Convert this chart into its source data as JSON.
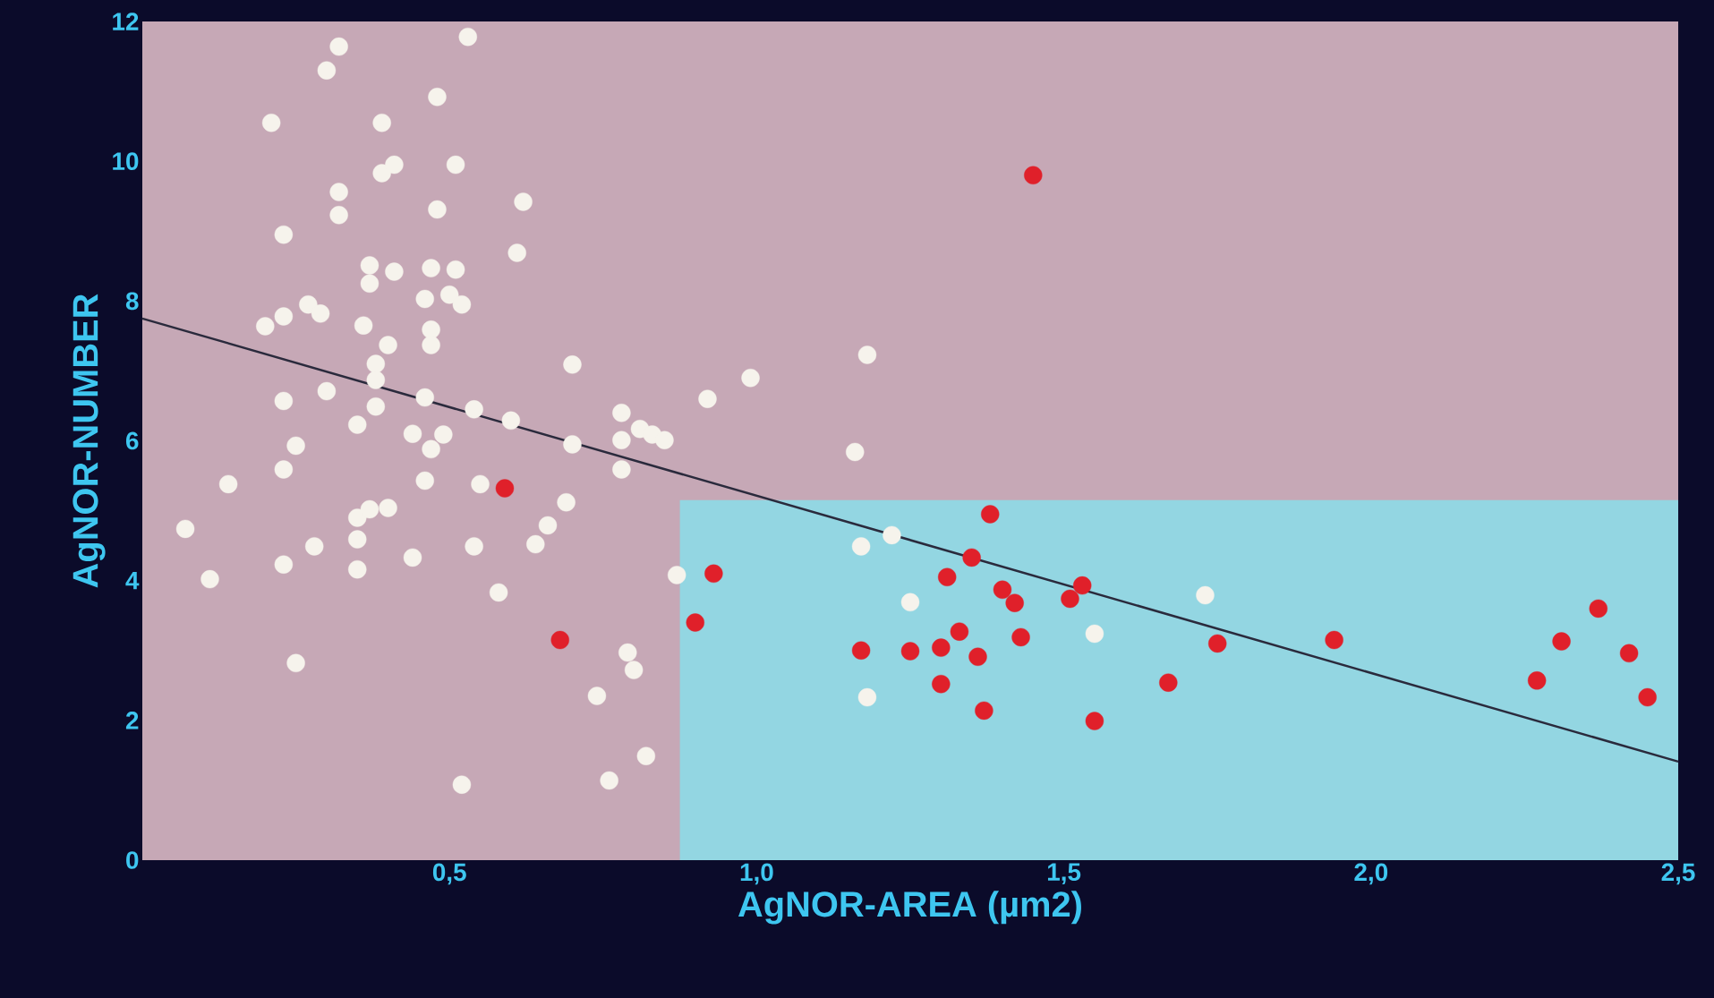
{
  "chart_data": {
    "type": "scatter",
    "xlabel": "AgNOR-AREA (µm2)",
    "ylabel": "AgNOR-NUMBER",
    "xlim": [
      0,
      2.5
    ],
    "ylim": [
      0,
      12
    ],
    "xticks": [
      {
        "value": 0.5,
        "label": "0,5"
      },
      {
        "value": 1.0,
        "label": "1,0"
      },
      {
        "value": 1.5,
        "label": "1,5"
      },
      {
        "value": 2.0,
        "label": "2,0"
      },
      {
        "value": 2.5,
        "label": "2,5"
      }
    ],
    "yticks": [
      0,
      2,
      4,
      6,
      8,
      10,
      12
    ],
    "series": [
      {
        "type": "area",
        "marker": "none",
        "color": "#93d6e2",
        "x": [
          0.875,
          2.5
        ],
        "values": [
          5.15,
          5.15
        ]
      },
      {
        "type": "line",
        "marker": "none",
        "color": "#2a2a3c",
        "x": [
          0,
          2.5
        ],
        "values": [
          7.75,
          1.41
        ]
      },
      {
        "color": "#f6f3ec",
        "marker": "circle",
        "x": [
          0.07,
          0.11,
          0.14,
          0.21,
          0.2,
          0.23,
          0.23,
          0.23,
          0.23,
          0.23,
          0.25,
          0.25,
          0.27,
          0.29,
          0.28,
          0.3,
          0.32,
          0.3,
          0.32,
          0.32,
          0.35,
          0.35,
          0.35,
          0.35,
          0.36,
          0.37,
          0.37,
          0.38,
          0.38,
          0.38,
          0.37,
          0.39,
          0.39,
          0.41,
          0.4,
          0.4,
          0.41,
          0.44,
          0.44,
          0.46,
          0.46,
          0.46,
          0.47,
          0.47,
          0.47,
          0.47,
          0.48,
          0.48,
          0.49,
          0.5,
          0.51,
          0.51,
          0.52,
          0.53,
          0.52,
          0.54,
          0.55,
          0.54,
          0.58,
          0.6,
          0.61,
          0.62,
          0.64,
          0.66,
          0.69,
          0.7,
          0.7,
          0.74,
          0.76,
          0.78,
          0.78,
          0.78,
          0.79,
          0.8,
          0.81,
          0.83,
          0.85,
          0.82,
          0.87,
          0.92,
          0.99,
          1.16,
          1.18,
          1.17,
          1.22,
          1.18,
          1.25,
          1.55,
          1.73
        ],
        "values": [
          4.74,
          4.02,
          5.38,
          10.55,
          7.64,
          7.78,
          8.95,
          6.57,
          5.59,
          4.23,
          2.82,
          5.93,
          7.95,
          7.82,
          4.49,
          11.3,
          11.64,
          6.71,
          9.56,
          9.23,
          4.16,
          4.59,
          4.9,
          6.23,
          7.65,
          8.25,
          8.51,
          7.1,
          6.87,
          6.49,
          5.02,
          9.83,
          10.55,
          9.95,
          7.37,
          5.04,
          8.42,
          4.33,
          6.1,
          5.43,
          6.62,
          8.03,
          8.47,
          7.59,
          7.37,
          5.88,
          9.31,
          10.92,
          6.09,
          8.09,
          9.95,
          8.45,
          7.95,
          11.78,
          1.08,
          6.45,
          5.38,
          4.49,
          3.83,
          6.29,
          8.69,
          9.42,
          4.52,
          4.79,
          5.12,
          5.95,
          7.09,
          2.35,
          1.14,
          5.59,
          6.4,
          6.01,
          2.97,
          2.72,
          6.17,
          6.09,
          6.01,
          1.49,
          4.08,
          6.6,
          6.9,
          5.84,
          7.23,
          4.49,
          4.65,
          2.33,
          3.69,
          3.24,
          3.79
        ]
      },
      {
        "color": "#e0202a",
        "marker": "circle",
        "x": [
          0.59,
          0.68,
          1.45,
          0.9,
          0.93,
          1.17,
          1.25,
          1.3,
          1.31,
          1.33,
          1.3,
          1.35,
          1.36,
          1.38,
          1.37,
          1.4,
          1.42,
          1.43,
          1.51,
          1.53,
          1.55,
          1.67,
          1.75,
          1.94,
          2.27,
          2.31,
          2.37,
          2.42,
          2.45
        ],
        "values": [
          5.32,
          3.15,
          9.8,
          3.4,
          4.1,
          3.0,
          2.99,
          3.04,
          4.05,
          3.27,
          2.52,
          4.33,
          2.91,
          4.95,
          2.14,
          3.87,
          3.68,
          3.19,
          3.74,
          3.93,
          1.99,
          2.54,
          3.1,
          3.15,
          2.57,
          3.13,
          3.6,
          2.96,
          2.33
        ]
      }
    ]
  }
}
